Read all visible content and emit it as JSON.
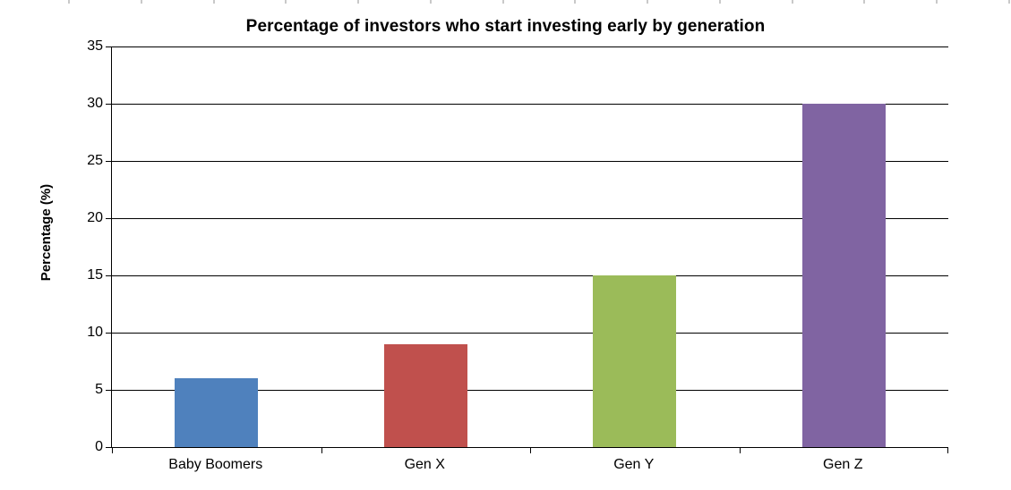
{
  "chart_data": {
    "type": "bar",
    "title": "Percentage of investors who start investing early by generation",
    "xlabel": "",
    "ylabel": "Percentage (%)",
    "categories": [
      "Baby Boomers",
      "Gen X",
      "Gen Y",
      "Gen Z"
    ],
    "values": [
      6,
      9,
      15,
      30
    ],
    "bar_colors": [
      "#4f81bd",
      "#c0504d",
      "#9bbb59",
      "#8064a2"
    ],
    "ylim": [
      0,
      35
    ],
    "yticks": [
      0,
      5,
      10,
      15,
      20,
      25,
      30,
      35
    ],
    "grid": "horizontal",
    "gridline_color": "#000000",
    "axis_color": "#000000",
    "text_color": "#000000",
    "background_color": "#ffffff",
    "legend": "none"
  }
}
